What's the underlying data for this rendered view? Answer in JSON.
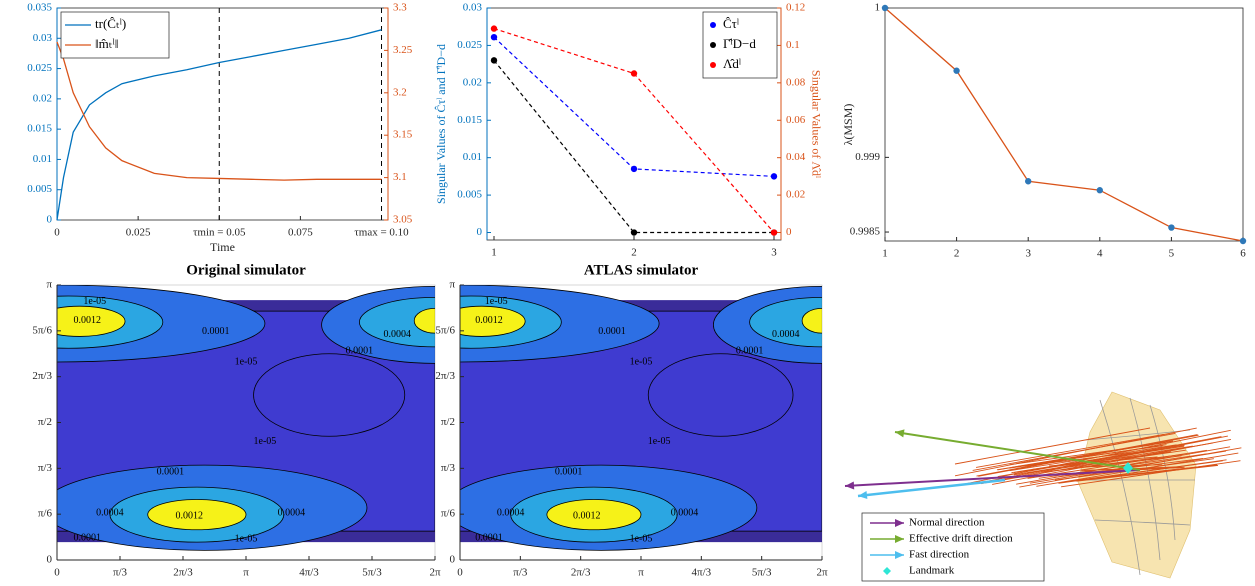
{
  "chart_data": [
    {
      "type": "line",
      "x": [
        0,
        0.002,
        0.005,
        0.01,
        0.015,
        0.02,
        0.03,
        0.04,
        0.05,
        0.06,
        0.07,
        0.08,
        0.09,
        0.1
      ],
      "series": [
        {
          "name": "tr(Ĉₜˡ)",
          "color": "#0072bd",
          "values": [
            0,
            0.007,
            0.0145,
            0.019,
            0.021,
            0.0225,
            0.0238,
            0.0248,
            0.026,
            0.027,
            0.028,
            0.029,
            0.03,
            0.0314
          ]
        },
        {
          "name": "‖m̂ₜˡ‖",
          "color": "#d95319",
          "axis": "y2",
          "values": [
            3.26,
            3.24,
            3.2,
            3.16,
            3.135,
            3.12,
            3.105,
            3.1,
            3.099,
            3.098,
            3.097,
            3.098,
            3.098,
            3.098
          ]
        }
      ],
      "xlabel": "Time",
      "xlim": [
        0,
        0.102
      ],
      "xticks": [
        0,
        0.025,
        {
          "value": 0.05,
          "label": "τmin = 0.05"
        },
        0.075,
        {
          "value": 0.1,
          "label": "τmax = 0.10"
        }
      ],
      "ylim": [
        0,
        0.035
      ],
      "yticks": [
        0,
        0.005,
        0.01,
        0.015,
        0.02,
        0.025,
        0.03,
        0.035
      ],
      "y2lim": [
        3.05,
        3.3
      ],
      "y2ticks": [
        3.05,
        3.1,
        3.15,
        3.2,
        3.25,
        3.3
      ],
      "vlines": [
        0.05,
        0.1
      ],
      "legend": "upper left",
      "ycolor": "#0072bd",
      "y2color": "#d95319"
    },
    {
      "type": "line",
      "x": [
        1,
        2,
        3
      ],
      "series": [
        {
          "name": "Ĉτˡ",
          "color": "#0000ff",
          "values": [
            0.0261,
            0.0085,
            0.0075
          ]
        },
        {
          "name": "Γ̂ˡD−d",
          "color": "#000000",
          "values": [
            0.023,
            0,
            0
          ]
        },
        {
          "name": "Λ̂dˡ",
          "color": "#ff0000",
          "axis": "y2",
          "values": [
            0.109,
            0.085,
            0
          ]
        }
      ],
      "ylabel": "Singular Values of Ĉτˡ and Γ̂ˡD−d",
      "y2label": "Singular Values of Λ̂dˡ",
      "xlim": [
        0.95,
        3.05
      ],
      "xticks": [
        1,
        2,
        3
      ],
      "ylim": [
        -0.001,
        0.03
      ],
      "yticks": [
        0,
        0.005,
        0.01,
        0.015,
        0.02,
        0.025,
        0.03
      ],
      "y2lim": [
        -0.004,
        0.12
      ],
      "y2ticks": [
        0,
        0.02,
        0.04,
        0.06,
        0.08,
        0.1,
        0.12
      ],
      "dashed": true,
      "markers": true,
      "legend": "upper right",
      "ycolor": "#0072bd",
      "y2color": "#d95319"
    },
    {
      "type": "line",
      "x": [
        1,
        2,
        3,
        4,
        5,
        6
      ],
      "series": [
        {
          "color": "#d95319",
          "marker_color": "#2e78b8",
          "values": [
            1,
            0.99958,
            0.99884,
            0.99878,
            0.99853,
            0.99844
          ]
        }
      ],
      "ylabel": "λ(MSM)",
      "xlim": [
        1,
        6
      ],
      "xticks": [
        1,
        2,
        3,
        4,
        5,
        6
      ],
      "ylim": [
        0.99844,
        1
      ],
      "yticks": [
        0.9985,
        0.999,
        1
      ],
      "markers": true
    },
    {
      "type": "contour",
      "title": "Original simulator",
      "xlim": [
        0,
        6.2832
      ],
      "ylim": [
        0,
        3.1416
      ],
      "xticks": [
        0,
        {
          "value": 1.0472,
          "label": "π/3"
        },
        {
          "value": 2.0944,
          "label": "2π/3"
        },
        {
          "value": 3.1416,
          "label": "π"
        },
        {
          "value": 4.1888,
          "label": "4π/3"
        },
        {
          "value": 5.236,
          "label": "5π/3"
        },
        {
          "value": 6.2832,
          "label": "2π"
        }
      ],
      "yticks": [
        0,
        {
          "value": 0.5236,
          "label": "π/6"
        },
        {
          "value": 1.0472,
          "label": "π/3"
        },
        {
          "value": 1.5708,
          "label": "π/2"
        },
        {
          "value": 2.0944,
          "label": "2π/3"
        },
        {
          "value": 2.618,
          "label": "5π/6"
        },
        {
          "value": 3.1416,
          "label": "π"
        }
      ],
      "levels": [
        {
          "value": 1e-05,
          "label": "1e-05"
        },
        0.0001,
        0.0004,
        0.0012
      ],
      "colors": [
        "#3a2c99",
        "#3f3bd0",
        "#2d6fe4",
        "#2ba6e2",
        "#f6f218"
      ]
    },
    {
      "type": "contour",
      "title": "ATLAS simulator",
      "xlim": [
        0,
        6.2832
      ],
      "ylim": [
        0,
        3.1416
      ],
      "xticks": [
        0,
        {
          "value": 1.0472,
          "label": "π/3"
        },
        {
          "value": 2.0944,
          "label": "2π/3"
        },
        {
          "value": 3.1416,
          "label": "π"
        },
        {
          "value": 4.1888,
          "label": "4π/3"
        },
        {
          "value": 5.236,
          "label": "5π/3"
        },
        {
          "value": 6.2832,
          "label": "2π"
        }
      ],
      "yticks": [
        0,
        {
          "value": 0.5236,
          "label": "π/6"
        },
        {
          "value": 1.0472,
          "label": "π/3"
        },
        {
          "value": 1.5708,
          "label": "π/2"
        },
        {
          "value": 2.0944,
          "label": "2π/3"
        },
        {
          "value": 2.618,
          "label": "5π/6"
        },
        {
          "value": 3.1416,
          "label": "π"
        }
      ],
      "levels": [
        {
          "value": 1e-05,
          "label": "1e-05"
        },
        0.0001,
        0.0004,
        0.0012
      ],
      "colors": [
        "#3a2c99",
        "#3f3bd0",
        "#2d6fe4",
        "#2ba6e2",
        "#f6f218"
      ]
    },
    {
      "type": "quiver",
      "series": [
        {
          "name": "Normal direction",
          "color": "#7e2f8e"
        },
        {
          "name": "Effective drift direction",
          "color": "#77ac30"
        },
        {
          "name": "Fast direction",
          "color": "#4dbeee"
        },
        {
          "name": "Landmark",
          "color": "#2ee6d6"
        }
      ]
    }
  ]
}
